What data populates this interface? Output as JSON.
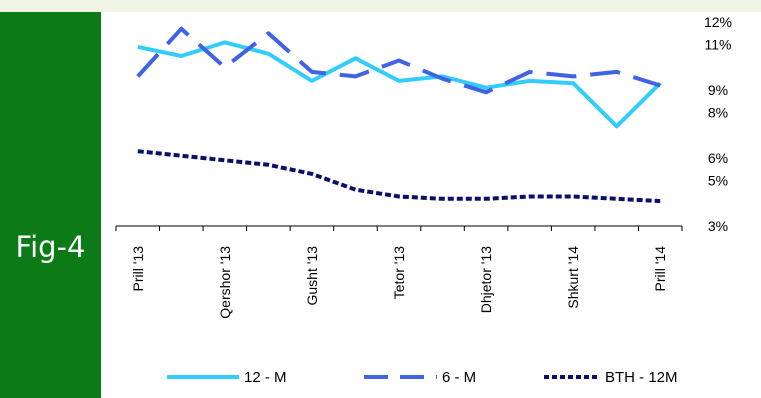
{
  "figure": {
    "label": "Fig-4"
  },
  "colors": {
    "left_bar": "#0b7a17",
    "background": "#eef3e4",
    "series_12m": "#33ccff",
    "series_6m": "#3f62e6",
    "series_bth": "#0a0f6b"
  },
  "chart_data": {
    "type": "line",
    "x_labels": [
      "Prill '13",
      "",
      "Qershor '13",
      "",
      "Gusht '13",
      "",
      "Tetor '13",
      "",
      "Dhjetor '13",
      "",
      "Shkurt '14",
      "",
      "Prill '14"
    ],
    "y_ticks": [
      "3%",
      "5%",
      "6%",
      "8%",
      "9%",
      "11%",
      "12%"
    ],
    "ylim": [
      3,
      12
    ],
    "y_axis_side": "right",
    "legend_position": "bottom",
    "series": [
      {
        "name": "12 - M",
        "style": "solid",
        "values_by_position": [
          [
            0,
            10.9
          ],
          [
            1,
            10.5
          ],
          [
            2,
            11.1
          ],
          [
            3,
            10.6
          ],
          [
            4,
            9.4
          ],
          [
            5,
            10.4
          ],
          [
            6,
            9.4
          ],
          [
            7,
            9.6
          ],
          [
            8,
            9.1
          ],
          [
            9,
            9.4
          ],
          [
            10,
            9.3
          ],
          [
            11,
            7.4
          ],
          [
            12,
            9.3
          ]
        ]
      },
      {
        "name": "6 - M",
        "style": "dashed",
        "values_by_position": [
          [
            0,
            9.6
          ],
          [
            1,
            11.7
          ],
          [
            2,
            10.0
          ],
          [
            3,
            11.5
          ],
          [
            4,
            9.8
          ],
          [
            5,
            9.6
          ],
          [
            6,
            10.3
          ],
          [
            7,
            9.5
          ],
          [
            8,
            8.9
          ],
          [
            9,
            9.8
          ],
          [
            10,
            9.6
          ],
          [
            11,
            9.8
          ],
          [
            12,
            9.2
          ]
        ]
      },
      {
        "name": "BTH - 12M",
        "style": "dotted",
        "values_by_position": [
          [
            0,
            6.3
          ],
          [
            1,
            6.1
          ],
          [
            2,
            5.9
          ],
          [
            3,
            5.7
          ],
          [
            4,
            5.3
          ],
          [
            5,
            4.6
          ],
          [
            6,
            4.3
          ],
          [
            7,
            4.2
          ],
          [
            8,
            4.2
          ],
          [
            9,
            4.3
          ],
          [
            10,
            4.3
          ],
          [
            11,
            4.2
          ],
          [
            12,
            4.1
          ]
        ]
      }
    ]
  }
}
